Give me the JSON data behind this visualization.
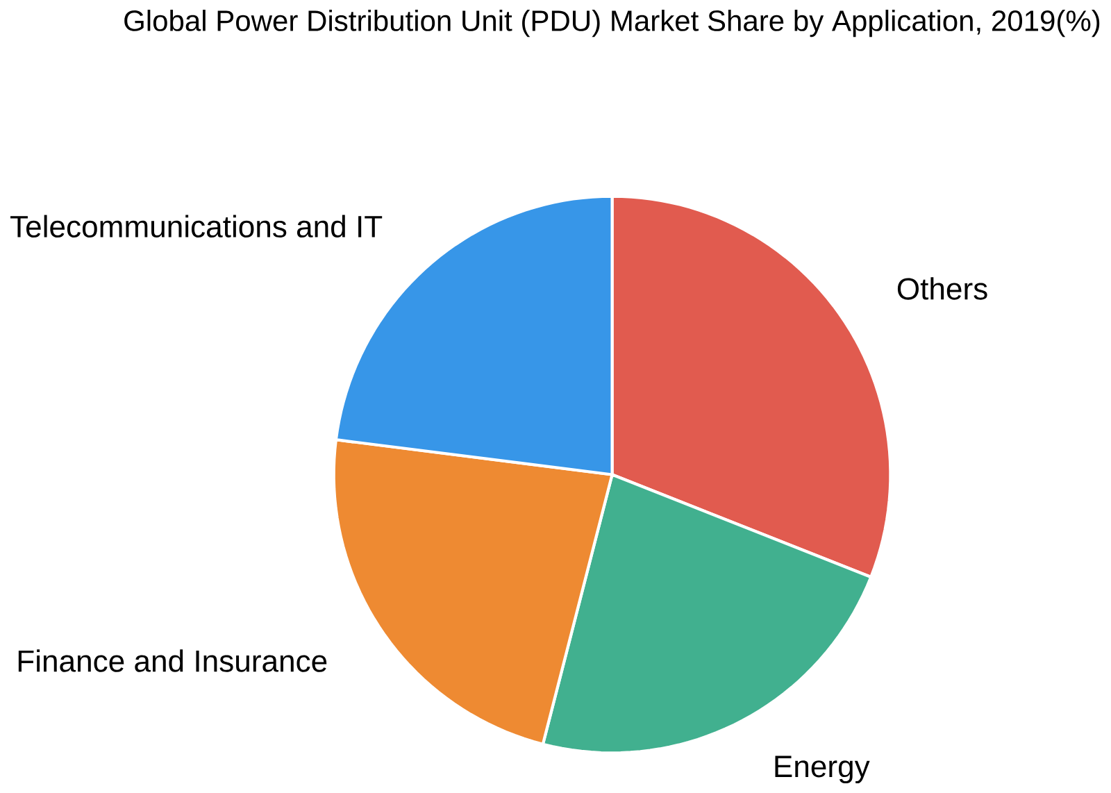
{
  "chart_data": {
    "type": "pie",
    "title": "Global Power Distribution Unit (PDU) Market Share by Application, 2019(%)",
    "categories": [
      "Others",
      "Energy",
      "Finance and Insurance",
      "Telecommunications and IT"
    ],
    "values": [
      31,
      23,
      23,
      23
    ],
    "colors": [
      "#e15b4f",
      "#41b08f",
      "#ee8a32",
      "#3796e8"
    ]
  }
}
